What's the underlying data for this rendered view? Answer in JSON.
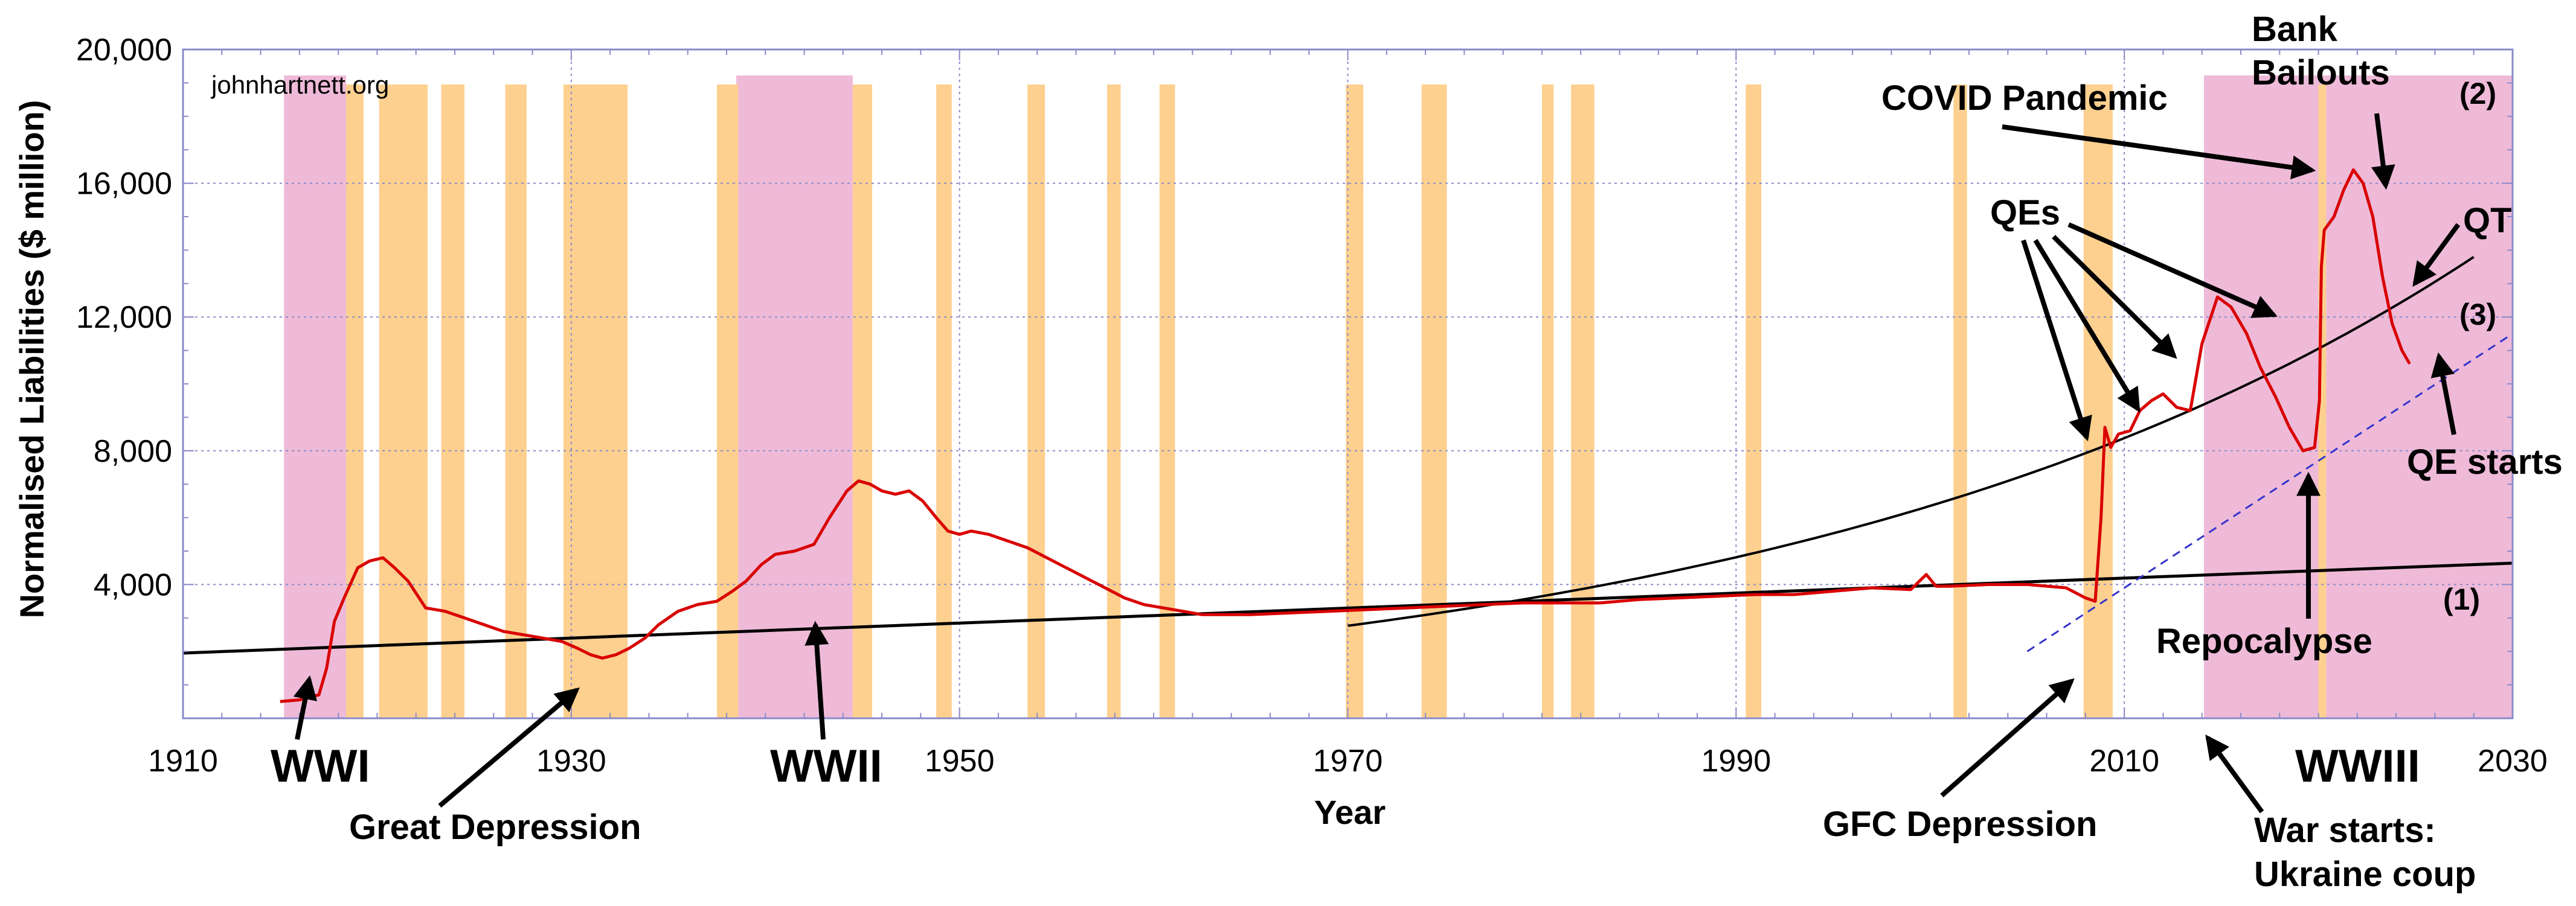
{
  "chart_data": {
    "type": "line",
    "title": "",
    "xlabel": "Year",
    "ylabel": "Normalised Liabilities ($ million)",
    "xlim": [
      1910,
      2030
    ],
    "ylim": [
      0,
      20000
    ],
    "x_ticks": [
      1910,
      1930,
      1950,
      1970,
      1990,
      2010,
      2030
    ],
    "x_tick_labels": [
      "1910",
      "1930",
      "1950",
      "1970",
      "1990",
      "2010",
      "2030"
    ],
    "y_ticks": [
      4000,
      8000,
      12000,
      16000,
      20000
    ],
    "y_tick_labels": [
      "4,000",
      "8,000",
      "12,000",
      "16,000",
      "20,000"
    ],
    "grid": true,
    "watermark": "johnhartnett.org",
    "colors": {
      "series": "#d90000",
      "trend": "#000000",
      "dashed_trend": "#3333cc",
      "recession": "#fdd08f",
      "war": "#eebad8",
      "grid": "#8a8ac8",
      "frame": "#8a8ac8"
    },
    "war_periods": [
      {
        "start": 1915.2,
        "end": 1918.4
      },
      {
        "start": 1938.5,
        "end": 1944.5
      },
      {
        "start": 2014.1,
        "end": 2030
      }
    ],
    "recession_periods": [
      {
        "start": 1918.4,
        "end": 1919.3
      },
      {
        "start": 1920.1,
        "end": 1922.6
      },
      {
        "start": 1923.3,
        "end": 1924.5
      },
      {
        "start": 1926.6,
        "end": 1927.7
      },
      {
        "start": 1929.6,
        "end": 1932.9
      },
      {
        "start": 1937.5,
        "end": 1938.6
      },
      {
        "start": 1944.5,
        "end": 1945.5
      },
      {
        "start": 1948.8,
        "end": 1949.6
      },
      {
        "start": 1953.5,
        "end": 1954.4
      },
      {
        "start": 1957.6,
        "end": 1958.3
      },
      {
        "start": 1960.3,
        "end": 1961.1
      },
      {
        "start": 1969.9,
        "end": 1970.8
      },
      {
        "start": 1973.8,
        "end": 1975.1
      },
      {
        "start": 1980.0,
        "end": 1980.6
      },
      {
        "start": 1981.5,
        "end": 1982.7
      },
      {
        "start": 1990.5,
        "end": 1991.3
      },
      {
        "start": 2001.2,
        "end": 2001.9
      },
      {
        "start": 2007.9,
        "end": 2009.4
      },
      {
        "start": 2020.0,
        "end": 2020.4
      }
    ],
    "series": [
      {
        "name": "",
        "x": [
          1915.0,
          1916.0,
          1917.0,
          1917.4,
          1917.8,
          1918.3,
          1919.0,
          1919.6,
          1920.3,
          1920.9,
          1921.6,
          1922.5,
          1923.5,
          1924.5,
          1925.5,
          1926.5,
          1927.5,
          1928.5,
          1929.5,
          1930.3,
          1931.0,
          1931.6,
          1932.3,
          1933.0,
          1933.8,
          1934.5,
          1935.5,
          1936.5,
          1937.5,
          1938.3,
          1939.0,
          1939.8,
          1940.5,
          1941.5,
          1942.5,
          1943.3,
          1944.2,
          1944.8,
          1945.4,
          1946.0,
          1946.7,
          1947.4,
          1948.1,
          1948.8,
          1949.4,
          1950.0,
          1950.6,
          1951.5,
          1952.5,
          1953.5,
          1954.5,
          1955.5,
          1956.5,
          1957.5,
          1958.5,
          1959.5,
          1960.5,
          1961.5,
          1962.5,
          1963.5,
          1965.0,
          1967.0,
          1969.0,
          1971.0,
          1973.0,
          1975.0,
          1977.0,
          1979.0,
          1981.0,
          1983.0,
          1985.0,
          1987.0,
          1989.0,
          1991.0,
          1993.0,
          1995.0,
          1997.0,
          1999.0,
          1999.8,
          2000.3,
          2001.0,
          2003.0,
          2005.0,
          2007.0,
          2008.0,
          2008.5,
          2008.8,
          2009.0,
          2009.3,
          2009.7,
          2010.3,
          2010.8,
          2011.4,
          2012.0,
          2012.7,
          2013.4,
          2014.0,
          2014.8,
          2015.5,
          2016.3,
          2017.0,
          2017.8,
          2018.5,
          2019.2,
          2019.8,
          2020.05,
          2020.15,
          2020.3,
          2020.8,
          2021.3,
          2021.8,
          2022.3,
          2022.8,
          2023.3,
          2023.8,
          2024.3,
          2024.7
        ],
        "y": [
          500,
          550,
          700,
          1500,
          2900,
          3600,
          4500,
          4700,
          4800,
          4500,
          4100,
          3300,
          3200,
          3000,
          2800,
          2600,
          2500,
          2400,
          2300,
          2100,
          1900,
          1800,
          1900,
          2100,
          2400,
          2800,
          3200,
          3400,
          3500,
          3800,
          4100,
          4600,
          4900,
          5000,
          5200,
          6000,
          6800,
          7100,
          7000,
          6800,
          6700,
          6800,
          6500,
          6000,
          5600,
          5500,
          5600,
          5500,
          5300,
          5100,
          4800,
          4500,
          4200,
          3900,
          3600,
          3400,
          3300,
          3200,
          3100,
          3100,
          3100,
          3150,
          3200,
          3250,
          3300,
          3350,
          3400,
          3450,
          3450,
          3450,
          3550,
          3600,
          3650,
          3700,
          3700,
          3800,
          3900,
          3850,
          4300,
          3950,
          3950,
          4000,
          4000,
          3900,
          3600,
          3500,
          6000,
          8700,
          8100,
          8500,
          8600,
          9200,
          9500,
          9700,
          9300,
          9200,
          11200,
          12600,
          12300,
          11500,
          10500,
          9600,
          8700,
          8000,
          8100,
          9500,
          13500,
          14600,
          15000,
          15800,
          16400,
          16000,
          15000,
          13200,
          11800,
          11000,
          10600
        ]
      }
    ],
    "curves": [
      {
        "label": "(1)",
        "style": "solid",
        "x": [
          1910,
          2030
        ],
        "y": [
          1950,
          4640
        ]
      },
      {
        "label": "(2)",
        "style": "solid",
        "function": "exponential",
        "x_range": [
          1970,
          2028
        ]
      },
      {
        "label": "(3)",
        "style": "dashed",
        "x": [
          2005,
          2030
        ],
        "y": [
          2000,
          11500
        ]
      }
    ],
    "annotations": [
      "WWI",
      "Great Depression",
      "WWII",
      "GFC Depression",
      "War starts:",
      "Ukraine coup",
      "WWIII",
      "Repocalypse",
      "QE starts",
      "QT",
      "QEs",
      "COVID Pandemic",
      "Bank",
      "Bailouts"
    ],
    "curve_labels": [
      "(1)",
      "(2)",
      "(3)"
    ]
  }
}
